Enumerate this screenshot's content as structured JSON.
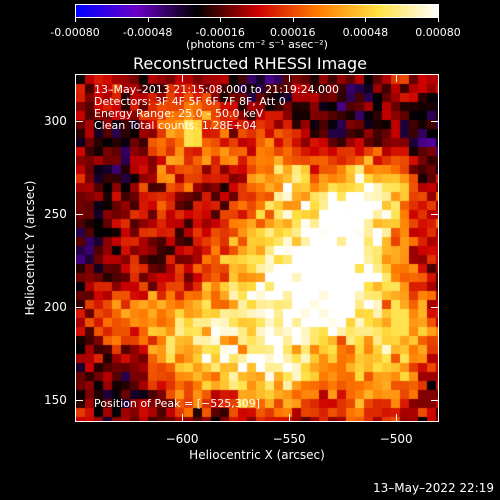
{
  "colorbar": {
    "tick_labels": [
      "-0.00080",
      "-0.00048",
      "-0.00016",
      "0.00016",
      "0.00048",
      "0.00080"
    ],
    "units_label": "(photons cm⁻² s⁻¹ asec⁻²)",
    "colormap": [
      "#0000ff",
      "#6a00c8",
      "#000000",
      "#cc0000",
      "#ff7a00",
      "#ffe040",
      "#ffffff"
    ],
    "range": [
      -0.0008,
      0.0008
    ]
  },
  "image": {
    "title": "Reconstructed RHESSI Image",
    "info_lines": [
      "13–May–2013 21:15:08.000 to 21:19:24.000",
      "Detectors: 3F 4F 5F 6F 7F 8F, Att 0",
      "Energy Range: 25.0 – 50.0 keV",
      "Clean     Total counts: 1.28E+04"
    ],
    "peak_text": "Position of Peak = [−525,309]"
  },
  "axes": {
    "x_label": "Heliocentric X (arcsec)",
    "y_label": "Heliocentric Y (arcsec)",
    "x_ticks": [
      "−600",
      "−550",
      "−500"
    ],
    "y_ticks": [
      "300",
      "250",
      "200",
      "150"
    ],
    "x_range": [
      -650,
      -480
    ],
    "y_range": [
      138,
      325
    ]
  },
  "footer": {
    "date": "13–May–2022 22:19"
  }
}
